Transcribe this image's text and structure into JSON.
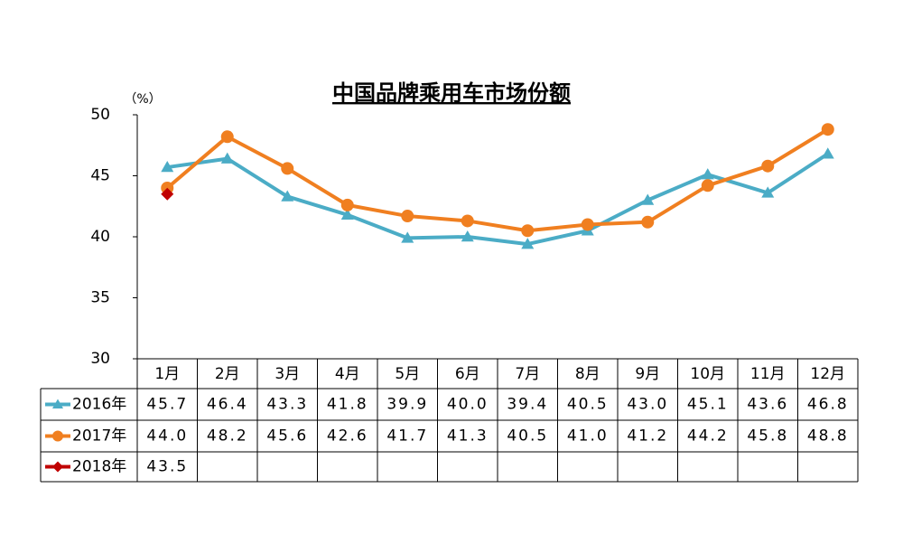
{
  "chart_data": {
    "type": "line",
    "title": "中国品牌乘用车市场份额",
    "ylabel": "（%）",
    "categories": [
      "1月",
      "2月",
      "3月",
      "4月",
      "5月",
      "6月",
      "7月",
      "8月",
      "9月",
      "10月",
      "11月",
      "12月"
    ],
    "ylim": [
      30,
      50
    ],
    "yticks": [
      30,
      35,
      40,
      45,
      50
    ],
    "grid": false,
    "series": [
      {
        "name": "2016年",
        "color": "#4bacc6",
        "marker": "triangle",
        "values": [
          45.7,
          46.4,
          43.3,
          41.8,
          39.9,
          40.0,
          39.4,
          40.5,
          43.0,
          45.1,
          43.6,
          46.8
        ],
        "value_labels": [
          "45.7",
          "46.4",
          "43.3",
          "41.8",
          "39.9",
          "40.0",
          "39.4",
          "40.5",
          "43.0",
          "45.1",
          "43.6",
          "46.8"
        ]
      },
      {
        "name": "2017年",
        "color": "#f07f20",
        "marker": "circle",
        "values": [
          44.0,
          48.2,
          45.6,
          42.6,
          41.7,
          41.3,
          40.5,
          41.0,
          41.2,
          44.2,
          45.8,
          48.8
        ],
        "value_labels": [
          "44.0",
          "48.2",
          "45.6",
          "42.6",
          "41.7",
          "41.3",
          "40.5",
          "41.0",
          "41.2",
          "44.2",
          "45.8",
          "48.8"
        ]
      },
      {
        "name": "2018年",
        "color": "#c00000",
        "marker": "diamond",
        "values": [
          43.5,
          null,
          null,
          null,
          null,
          null,
          null,
          null,
          null,
          null,
          null,
          null
        ],
        "value_labels": [
          "43.5",
          null,
          null,
          null,
          null,
          null,
          null,
          null,
          null,
          null,
          null,
          null
        ]
      }
    ]
  }
}
